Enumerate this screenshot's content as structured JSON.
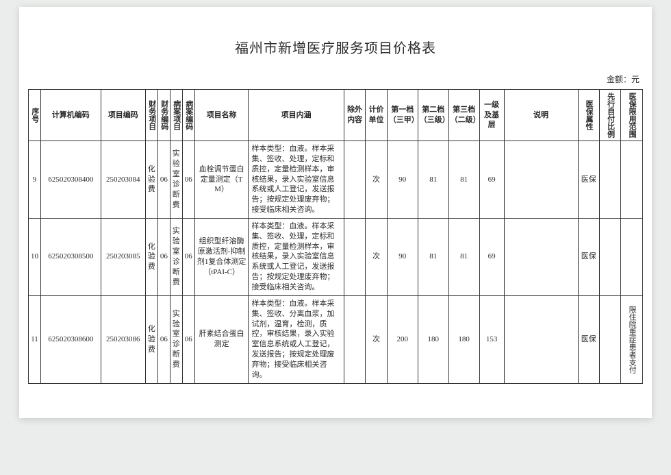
{
  "title": "福州市新增医疗服务项目价格表",
  "unit_label": "金额：元",
  "headers": {
    "seq": "序号",
    "computer_code": "计算机编码",
    "item_code": "项目编码",
    "fin_item": "财务项目",
    "fin_code": "财务编码",
    "rec_item": "病案项目",
    "rec_code": "病案编码",
    "item_name": "项目名称",
    "item_desc": "项目内涵",
    "exclude": "除外内容",
    "price_unit": "计价单位",
    "tier1": "第一档（三甲）",
    "tier2": "第二档（三级）",
    "tier3": "第三档（二级）",
    "tier4": "一级及基层",
    "note": "说明",
    "insurance": "医保属性",
    "prepay": "先行自付比例",
    "limit": "医保限用范围"
  },
  "rows": [
    {
      "seq": "9",
      "computer_code": "625020308400",
      "item_code": "250203084",
      "fin_item": "化验费",
      "fin_code": "06",
      "rec_item": "实验室诊断费",
      "rec_code": "06",
      "item_name": "血栓调节蛋白定量测定（TM）",
      "item_desc": "样本类型：血液。样本采集、签收、处理，定标和质控，定量检测样本，审核结果，录入实验室信息系统或人工登记，发送报告；按规定处理废弃物；接受临床相关咨询。",
      "exclude": "",
      "price_unit": "次",
      "tier1": "90",
      "tier2": "81",
      "tier3": "81",
      "tier4": "69",
      "note": "",
      "insurance": "医保",
      "prepay": "",
      "limit": ""
    },
    {
      "seq": "10",
      "computer_code": "625020308500",
      "item_code": "250203085",
      "fin_item": "化验费",
      "fin_code": "06",
      "rec_item": "实验室诊断费",
      "rec_code": "06",
      "item_name": "组织型纤溶酶原激活剂-抑制剂1复合体测定（tPAI-C）",
      "item_desc": "样本类型：血液。样本采集、签收、处理，定标和质控，定量检测样本，审核结果，录入实验室信息系统或人工登记，发送报告；按规定处理废弃物；接受临床相关咨询。",
      "exclude": "",
      "price_unit": "次",
      "tier1": "90",
      "tier2": "81",
      "tier3": "81",
      "tier4": "69",
      "note": "",
      "insurance": "医保",
      "prepay": "",
      "limit": ""
    },
    {
      "seq": "11",
      "computer_code": "625020308600",
      "item_code": "250203086",
      "fin_item": "化验费",
      "fin_code": "06",
      "rec_item": "实验室诊断费",
      "rec_code": "06",
      "item_name": "肝素结合蛋白测定",
      "item_desc": "样本类型：血液。样本采集、签收、分离血浆，加试剂，温育，检测，质控，审核结果，录入实验室信息系统或人工登记，发送报告；按规定处理废弃物；接受临床相关咨询。",
      "exclude": "",
      "price_unit": "次",
      "tier1": "200",
      "tier2": "180",
      "tier3": "180",
      "tier4": "153",
      "note": "",
      "insurance": "医保",
      "prepay": "",
      "limit": "限住院重症患者支付"
    }
  ]
}
